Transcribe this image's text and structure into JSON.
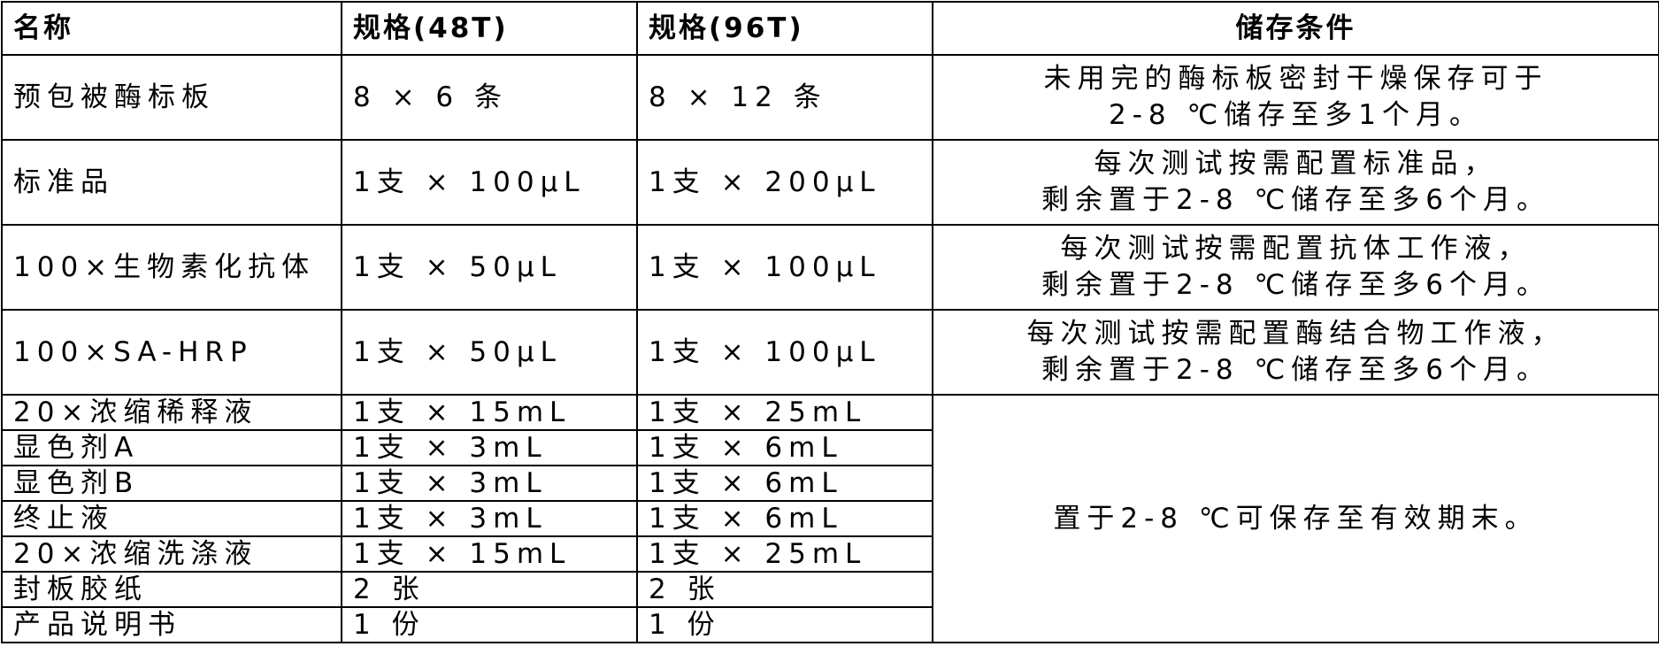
{
  "headers": [
    "名称",
    "规格(48T)",
    "规格(96T)",
    "储存条件"
  ],
  "rows": [
    {
      "name": "预包被酶标板",
      "s48": "8 × 6 条",
      "s96": "8 × 12 条",
      "storage": [
        "未用完的酶标板密封干燥保存可于",
        "2-8 ℃储存至多1个月。"
      ]
    },
    {
      "name": "标准品",
      "s48": "1支 × 100μL",
      "s96": "1支 × 200μL",
      "storage": [
        "每次测试按需配置标准品，",
        "剩余置于2-8 ℃储存至多6个月。"
      ]
    },
    {
      "name": "100×生物素化抗体",
      "s48": "1支 × 50μL",
      "s96": "1支 × 100μL",
      "storage": [
        "每次测试按需配置抗体工作液，",
        "剩余置于2-8 ℃储存至多6个月。"
      ]
    },
    {
      "name": "100×SA-HRP",
      "s48": "1支 × 50μL",
      "s96": "1支 × 100μL",
      "storage": [
        "每次测试按需配置酶结合物工作液，",
        "剩余置于2-8 ℃储存至多6个月。"
      ]
    },
    {
      "name": "20×浓缩稀释液",
      "s48": "1支 × 15mL",
      "s96": "1支 × 25mL"
    },
    {
      "name": "显色剂A",
      "s48": "1支 × 3mL",
      "s96": "1支 × 6mL"
    },
    {
      "name": "显色剂B",
      "s48": "1支 × 3mL",
      "s96": "1支 × 6mL"
    },
    {
      "name": "终止液",
      "s48": "1支 × 3mL",
      "s96": "1支 × 6mL"
    },
    {
      "name": "20×浓缩洗涤液",
      "s48": "1支 × 15mL",
      "s96": "1支 × 25mL"
    },
    {
      "name": "封板胶纸",
      "s48": "2 张",
      "s96": "2 张"
    },
    {
      "name": "产品说明书",
      "s48": "1 份",
      "s96": "1 份"
    }
  ],
  "merged_storage": "置于2-8 ℃可保存至有效期末。"
}
